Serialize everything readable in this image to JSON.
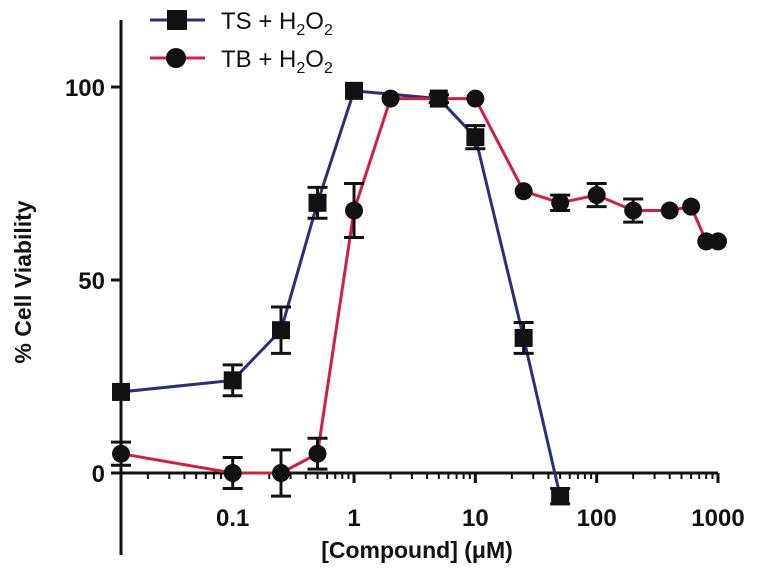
{
  "chart_data": {
    "type": "line",
    "xlabel": "[Compound] (μM)",
    "ylabel": "% Cell Viability",
    "xscale": "log",
    "xlim": [
      0.012,
      1000
    ],
    "ylim": [
      -10,
      115
    ],
    "x_ticks": [
      0.1,
      1,
      10,
      100,
      1000
    ],
    "x_tick_labels": [
      "0.1",
      "1",
      "10",
      "100",
      "1000"
    ],
    "y_ticks": [
      0,
      50,
      100
    ],
    "y_tick_labels": [
      "0",
      "50",
      "100"
    ],
    "grid": false,
    "legend_position": "top-left",
    "series": [
      {
        "name_main": "TS + H",
        "name_sub1": "2",
        "name_mid": "O",
        "name_sub2": "2",
        "color": "#2b2e7a",
        "marker": "square",
        "x": [
          0.012,
          0.1,
          0.25,
          0.5,
          1,
          5,
          10,
          25,
          50
        ],
        "y": [
          21,
          24,
          37,
          70,
          99,
          97,
          87,
          35,
          -6
        ],
        "error": [
          0,
          4,
          6,
          4,
          0,
          1,
          3,
          4,
          2
        ]
      },
      {
        "name_main": "TB + H",
        "name_sub1": "2",
        "name_mid": "O",
        "name_sub2": "2",
        "color": "#d11f44",
        "marker": "circle",
        "x": [
          0.012,
          0.1,
          0.25,
          0.5,
          1,
          2,
          5,
          10,
          25,
          50,
          100,
          200,
          400,
          600,
          800,
          1000
        ],
        "y": [
          5,
          0,
          0,
          5,
          68,
          97,
          97,
          97,
          73,
          70,
          72,
          68,
          68,
          69,
          60,
          60
        ],
        "error": [
          3,
          4,
          6,
          4,
          7,
          0,
          1,
          0,
          0,
          2,
          3,
          3,
          0,
          0,
          0,
          0
        ]
      }
    ]
  }
}
